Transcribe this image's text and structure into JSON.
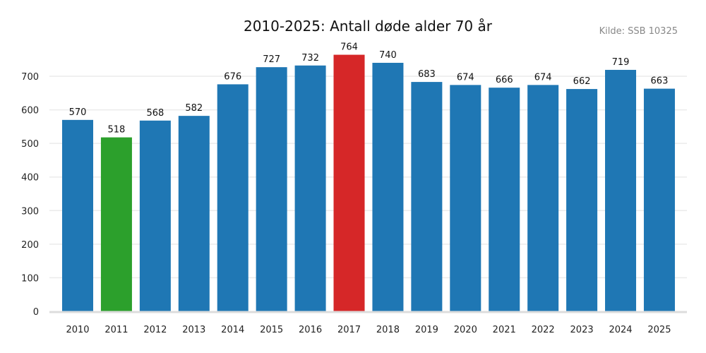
{
  "chart_data": {
    "type": "bar",
    "title": "2010-2025: Antall døde alder 70 år",
    "source": "Kilde: SSB 10325",
    "xlabel": "",
    "ylabel": "",
    "categories": [
      "2010",
      "2011",
      "2012",
      "2013",
      "2014",
      "2015",
      "2016",
      "2017",
      "2018",
      "2019",
      "2020",
      "2021",
      "2022",
      "2023",
      "2024",
      "2025"
    ],
    "values": [
      570,
      518,
      568,
      582,
      676,
      727,
      732,
      764,
      740,
      683,
      674,
      666,
      674,
      662,
      719,
      663
    ],
    "colors": [
      "#1f77b4",
      "#2ca02c",
      "#1f77b4",
      "#1f77b4",
      "#1f77b4",
      "#1f77b4",
      "#1f77b4",
      "#d62728",
      "#1f77b4",
      "#1f77b4",
      "#1f77b4",
      "#1f77b4",
      "#1f77b4",
      "#1f77b4",
      "#1f77b4",
      "#1f77b4"
    ],
    "yticks": [
      0,
      100,
      200,
      300,
      400,
      500,
      600,
      700
    ],
    "ylim": [
      0,
      800
    ],
    "grid": "horizontal",
    "data_labels": true
  }
}
